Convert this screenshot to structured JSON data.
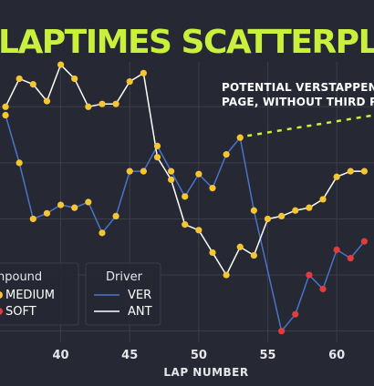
{
  "chart_data": {
    "type": "scatter",
    "title": "LAPTIMES SCATTERPLOT • R",
    "xlabel": "LAP NUMBER",
    "ylabel": "",
    "x_ticks": [
      40,
      45,
      50,
      55,
      60
    ],
    "xlim": [
      35.6,
      62.7
    ],
    "ylim": [
      0,
      100
    ],
    "grid": true,
    "annotation": {
      "lines": [
        "POTENTIAL VERSTAPPEN'S",
        "PAGE, WITHOUT THIRD PIT"
      ]
    },
    "series": [
      {
        "name": "VER",
        "line_color": "#4a74c9",
        "points": [
          {
            "x": 36,
            "y": 81,
            "c": "MEDIUM"
          },
          {
            "x": 37,
            "y": 64,
            "c": "MEDIUM"
          },
          {
            "x": 38,
            "y": 44,
            "c": "MEDIUM"
          },
          {
            "x": 39,
            "y": 46,
            "c": "MEDIUM"
          },
          {
            "x": 40,
            "y": 49,
            "c": "MEDIUM"
          },
          {
            "x": 41,
            "y": 48,
            "c": "MEDIUM"
          },
          {
            "x": 42,
            "y": 50,
            "c": "MEDIUM"
          },
          {
            "x": 43,
            "y": 39,
            "c": "MEDIUM"
          },
          {
            "x": 44,
            "y": 45,
            "c": "MEDIUM"
          },
          {
            "x": 45,
            "y": 61,
            "c": "MEDIUM"
          },
          {
            "x": 46,
            "y": 61,
            "c": "MEDIUM"
          },
          {
            "x": 47,
            "y": 70,
            "c": "MEDIUM"
          },
          {
            "x": 48,
            "y": 61,
            "c": "MEDIUM"
          },
          {
            "x": 49,
            "y": 52,
            "c": "MEDIUM"
          },
          {
            "x": 50,
            "y": 60,
            "c": "MEDIUM"
          },
          {
            "x": 51,
            "y": 55,
            "c": "MEDIUM"
          },
          {
            "x": 52,
            "y": 67,
            "c": "MEDIUM"
          },
          {
            "x": 53,
            "y": 73,
            "c": "MEDIUM"
          },
          {
            "x": 54,
            "y": 47,
            "c": "MEDIUM"
          },
          {
            "x": 56,
            "y": 4,
            "c": "SOFT"
          },
          {
            "x": 57,
            "y": 10,
            "c": "SOFT"
          },
          {
            "x": 58,
            "y": 24,
            "c": "SOFT"
          },
          {
            "x": 59,
            "y": 19,
            "c": "SOFT"
          },
          {
            "x": 60,
            "y": 33,
            "c": "SOFT"
          },
          {
            "x": 61,
            "y": 30,
            "c": "SOFT"
          },
          {
            "x": 62,
            "y": 36,
            "c": "SOFT"
          }
        ]
      },
      {
        "name": "ANT",
        "line_color": "#ffffff",
        "points": [
          {
            "x": 36,
            "y": 84,
            "c": "MEDIUM"
          },
          {
            "x": 37,
            "y": 94,
            "c": "MEDIUM"
          },
          {
            "x": 38,
            "y": 92,
            "c": "MEDIUM"
          },
          {
            "x": 39,
            "y": 86,
            "c": "MEDIUM"
          },
          {
            "x": 40,
            "y": 99,
            "c": "MEDIUM"
          },
          {
            "x": 41,
            "y": 94,
            "c": "MEDIUM"
          },
          {
            "x": 42,
            "y": 84,
            "c": "MEDIUM"
          },
          {
            "x": 43,
            "y": 85,
            "c": "MEDIUM"
          },
          {
            "x": 44,
            "y": 85,
            "c": "MEDIUM"
          },
          {
            "x": 45,
            "y": 93,
            "c": "MEDIUM"
          },
          {
            "x": 46,
            "y": 96,
            "c": "MEDIUM"
          },
          {
            "x": 47,
            "y": 66,
            "c": "MEDIUM"
          },
          {
            "x": 48,
            "y": 58,
            "c": "MEDIUM"
          },
          {
            "x": 49,
            "y": 42,
            "c": "MEDIUM"
          },
          {
            "x": 50,
            "y": 40,
            "c": "MEDIUM"
          },
          {
            "x": 51,
            "y": 32,
            "c": "MEDIUM"
          },
          {
            "x": 52,
            "y": 24,
            "c": "MEDIUM"
          },
          {
            "x": 53,
            "y": 34,
            "c": "MEDIUM"
          },
          {
            "x": 54,
            "y": 31,
            "c": "MEDIUM"
          },
          {
            "x": 55,
            "y": 44,
            "c": "MEDIUM"
          },
          {
            "x": 56,
            "y": 45,
            "c": "MEDIUM"
          },
          {
            "x": 57,
            "y": 47,
            "c": "MEDIUM"
          },
          {
            "x": 58,
            "y": 48,
            "c": "MEDIUM"
          },
          {
            "x": 59,
            "y": 51,
            "c": "MEDIUM"
          },
          {
            "x": 60,
            "y": 59,
            "c": "MEDIUM"
          },
          {
            "x": 61,
            "y": 61,
            "c": "MEDIUM"
          },
          {
            "x": 62,
            "y": 61,
            "c": "MEDIUM"
          }
        ]
      }
    ],
    "projection": {
      "from": [
        53,
        73
      ],
      "to": [
        62.7,
        81
      ],
      "color": "#c8f03c"
    },
    "compound_colors": {
      "MEDIUM": "#f6c532",
      "SOFT": "#e23c3c"
    },
    "legend": {
      "placement": "bottom-left",
      "compound_title": "npound",
      "compound_items": [
        {
          "label": "MEDIUM",
          "color": "#f6c532"
        },
        {
          "label": "SOFT",
          "color": "#e23c3c"
        }
      ],
      "driver_title": "Driver",
      "driver_items": [
        {
          "label": "VER",
          "color": "#4a74c9"
        },
        {
          "label": "ANT",
          "color": "#ffffff"
        }
      ]
    }
  },
  "colors": {
    "background": "#262833",
    "title": "#c8f03c",
    "grid": "#3b3e4b"
  }
}
